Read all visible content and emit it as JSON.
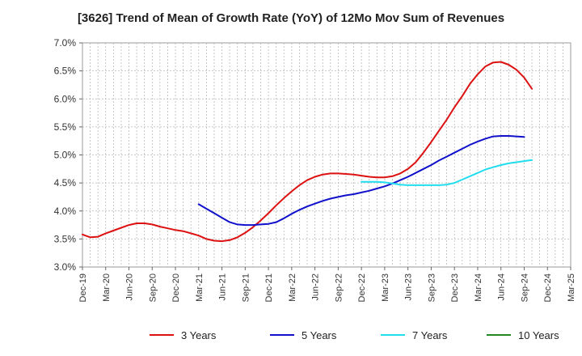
{
  "chart_data": {
    "type": "line",
    "title": "[3626]  Trend of Mean of Growth Rate (YoY) of 12Mo Mov Sum of Revenues",
    "xlabel": "",
    "ylabel": "",
    "ylim": [
      3.0,
      7.0
    ],
    "yticks": [
      "3.0%",
      "3.5%",
      "4.0%",
      "4.5%",
      "5.0%",
      "5.5%",
      "6.0%",
      "6.5%",
      "7.0%"
    ],
    "yticks_values": [
      3.0,
      3.5,
      4.0,
      4.5,
      5.0,
      5.5,
      6.0,
      6.5,
      7.0
    ],
    "xticks": [
      "Dec-19",
      "Mar-20",
      "Jun-20",
      "Sep-20",
      "Dec-20",
      "Mar-21",
      "Jun-21",
      "Sep-21",
      "Dec-21",
      "Mar-22",
      "Jun-22",
      "Sep-22",
      "Dec-22",
      "Mar-23",
      "Jun-23",
      "Sep-23",
      "Dec-23",
      "Mar-24",
      "Jun-24",
      "Sep-24",
      "Dec-24",
      "Mar-25"
    ],
    "grid": true,
    "legend_position": "bottom",
    "series": [
      {
        "name": "3 Years",
        "color": "#dd1111",
        "start_index": 0,
        "values": [
          3.58,
          3.53,
          3.54,
          3.6,
          3.65,
          3.7,
          3.75,
          3.78,
          3.78,
          3.76,
          3.72,
          3.69,
          3.66,
          3.64,
          3.6,
          3.56,
          3.5,
          3.47,
          3.46,
          3.48,
          3.53,
          3.61,
          3.71,
          3.83,
          3.96,
          4.1,
          4.23,
          4.35,
          4.46,
          4.55,
          4.61,
          4.65,
          4.67,
          4.67,
          4.66,
          4.65,
          4.63,
          4.61,
          4.6,
          4.6,
          4.62,
          4.67,
          4.75,
          4.87,
          5.04,
          5.23,
          5.43,
          5.63,
          5.85,
          6.05,
          6.27,
          6.44,
          6.58,
          6.65,
          6.66,
          6.61,
          6.52,
          6.38,
          6.18
        ]
      },
      {
        "name": "5 Years",
        "color": "#1111cc",
        "start_index": 15,
        "values": [
          4.12,
          4.04,
          3.96,
          3.88,
          3.8,
          3.76,
          3.75,
          3.75,
          3.76,
          3.77,
          3.8,
          3.87,
          3.95,
          4.02,
          4.08,
          4.13,
          4.18,
          4.22,
          4.25,
          4.28,
          4.3,
          4.33,
          4.36,
          4.4,
          4.44,
          4.49,
          4.55,
          4.61,
          4.68,
          4.75,
          4.82,
          4.9,
          4.97,
          5.04,
          5.11,
          5.18,
          5.24,
          5.29,
          5.33,
          5.34,
          5.34,
          5.33,
          5.32
        ]
      },
      {
        "name": "7 Years",
        "color": "#22ddee",
        "start_index": 36,
        "values": [
          4.52,
          4.52,
          4.52,
          4.51,
          4.49,
          4.47,
          4.46,
          4.46,
          4.46,
          4.46,
          4.46,
          4.47,
          4.5,
          4.56,
          4.62,
          4.68,
          4.74,
          4.78,
          4.82,
          4.85,
          4.87,
          4.89,
          4.91
        ]
      },
      {
        "name": "10 Years",
        "color": "#228822",
        "start_index": 0,
        "values": []
      }
    ]
  }
}
